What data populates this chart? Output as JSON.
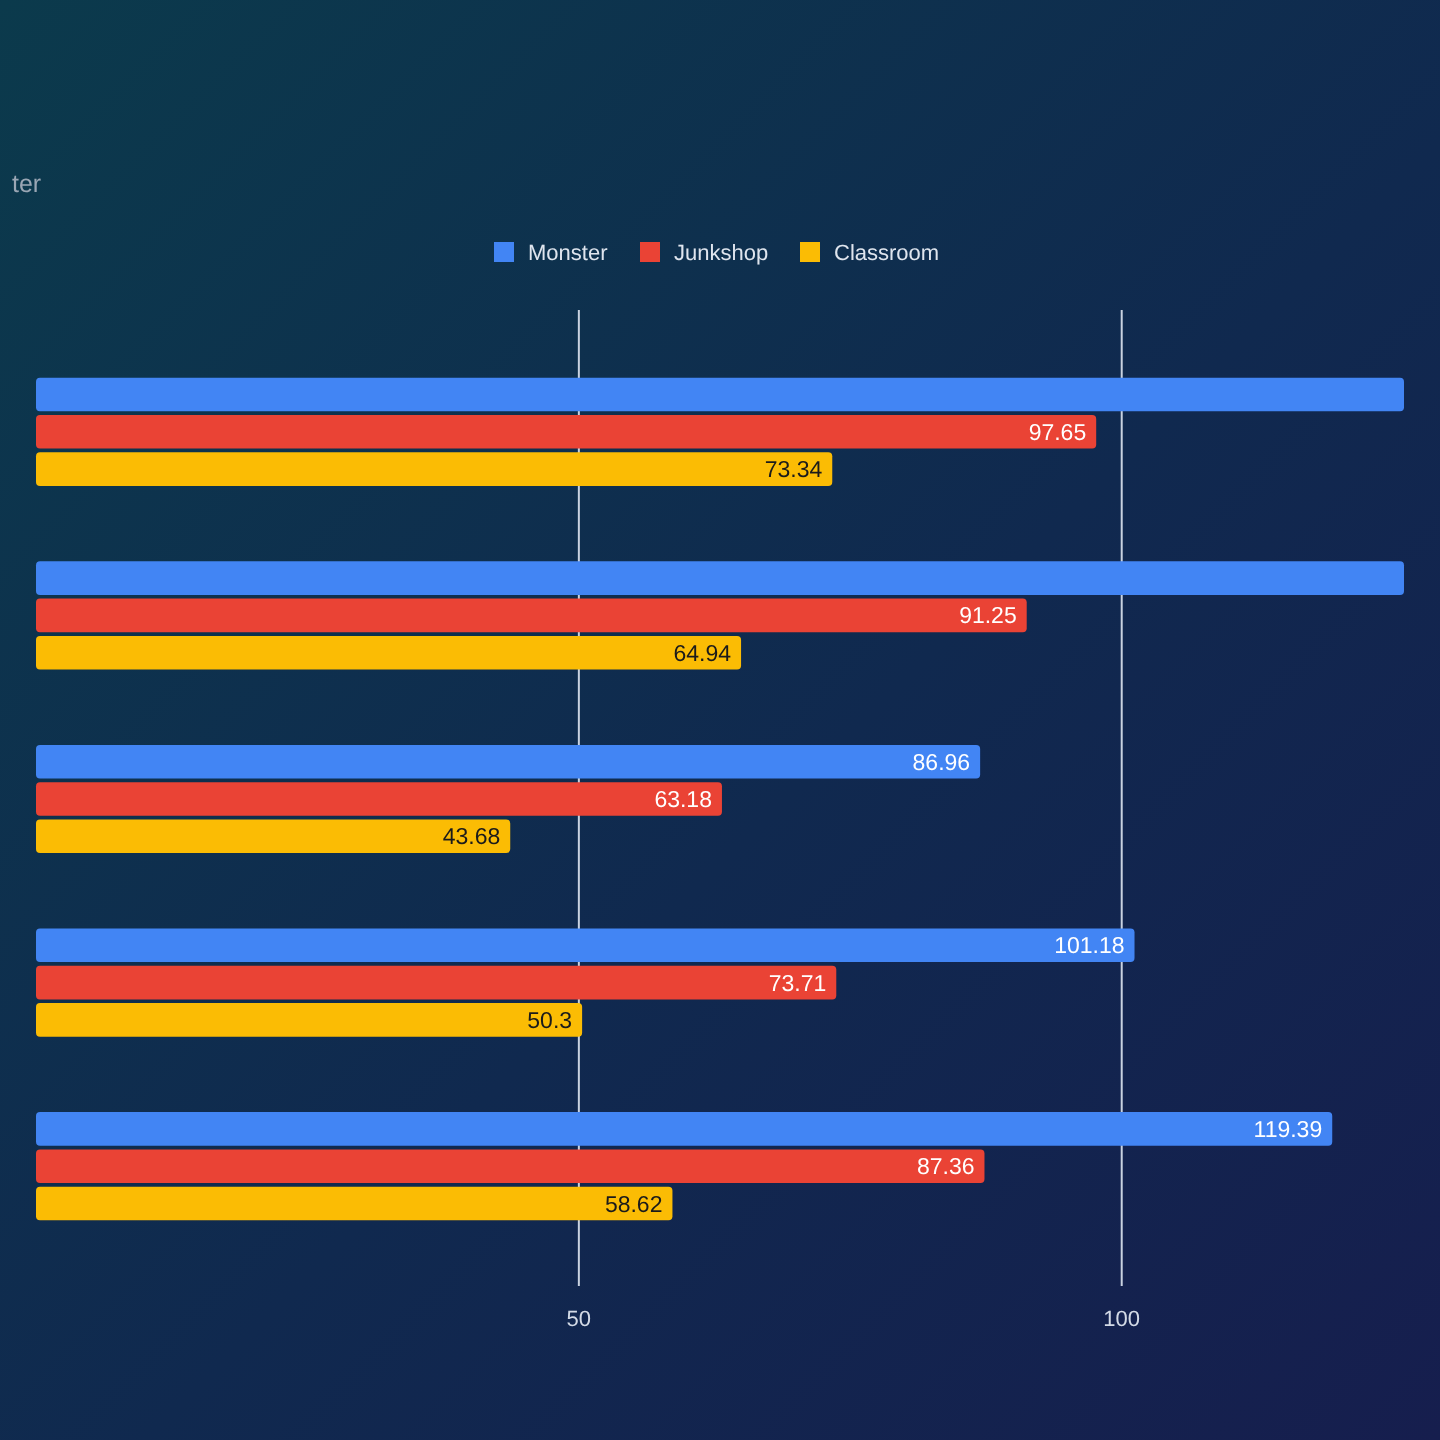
{
  "chart_data": {
    "type": "bar",
    "orientation": "horizontal",
    "subtitle": "ter",
    "categories": [
      null,
      null,
      null,
      null,
      null
    ],
    "series": [
      {
        "name": "Monster",
        "color": "#4285f4",
        "values": [
          126,
          126,
          86.96,
          101.18,
          119.39
        ],
        "value_labels": [
          null,
          null,
          "86.96",
          "101.18",
          "119.39"
        ]
      },
      {
        "name": "Junkshop",
        "color": "#ea4335",
        "values": [
          97.65,
          91.25,
          63.18,
          73.71,
          87.36
        ],
        "value_labels": [
          "97.65",
          "91.25",
          "63.18",
          "73.71",
          "87.36"
        ]
      },
      {
        "name": "Classroom",
        "color": "#fbbc04",
        "values": [
          73.34,
          64.94,
          43.68,
          50.3,
          58.62
        ],
        "value_labels": [
          "73.34",
          "64.94",
          "43.68",
          "50.3",
          "58.62"
        ]
      }
    ],
    "xlim": [
      0,
      126
    ],
    "xticks": [
      50,
      100
    ],
    "grid": "x",
    "legend": "top"
  }
}
